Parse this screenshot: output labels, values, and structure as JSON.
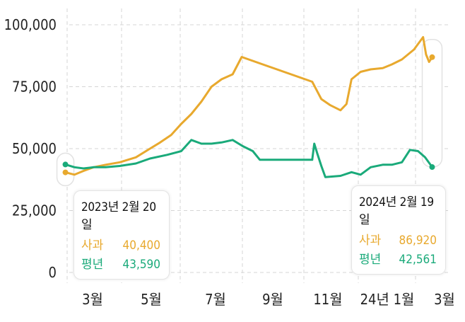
{
  "chart_data": {
    "type": "line",
    "x_tick_labels": [
      "3월",
      "5월",
      "7월",
      "9월",
      "11월",
      "24년 1월",
      "3월"
    ],
    "y_tick_labels": [
      "100,000",
      "75,000",
      "50,000",
      "25,000",
      "0"
    ],
    "y_ticks": [
      100000,
      75000,
      50000,
      25000,
      0
    ],
    "ylim": [
      0,
      100000
    ],
    "xlim": [
      "2023-02-14",
      "2024-03-10"
    ],
    "grid": true,
    "series": [
      {
        "name": "사과",
        "color": "#e8a92e",
        "points": [
          [
            "2023-02-20",
            40400
          ],
          [
            "2023-03-01",
            39500
          ],
          [
            "2023-03-10",
            41000
          ],
          [
            "2023-03-20",
            42500
          ],
          [
            "2023-04-01",
            43500
          ],
          [
            "2023-04-15",
            44500
          ],
          [
            "2023-05-01",
            46500
          ],
          [
            "2023-05-15",
            50000
          ],
          [
            "2023-05-25",
            52500
          ],
          [
            "2023-06-05",
            55500
          ],
          [
            "2023-06-15",
            60000
          ],
          [
            "2023-06-25",
            64000
          ],
          [
            "2023-07-05",
            69000
          ],
          [
            "2023-07-15",
            75000
          ],
          [
            "2023-07-25",
            78000
          ],
          [
            "2023-08-05",
            80000
          ],
          [
            "2023-08-14",
            87000
          ],
          [
            "2023-10-23",
            77000
          ],
          [
            "2023-11-01",
            70000
          ],
          [
            "2023-11-10",
            67500
          ],
          [
            "2023-11-20",
            65500
          ],
          [
            "2023-11-26",
            68000
          ],
          [
            "2023-12-01",
            78000
          ],
          [
            "2023-12-10",
            81000
          ],
          [
            "2023-12-20",
            82000
          ],
          [
            "2024-01-01",
            82500
          ],
          [
            "2024-01-10",
            84000
          ],
          [
            "2024-01-20",
            86000
          ],
          [
            "2024-02-01",
            90000
          ],
          [
            "2024-02-10",
            95000
          ],
          [
            "2024-02-13",
            88000
          ],
          [
            "2024-02-16",
            85000
          ],
          [
            "2024-02-19",
            86920
          ]
        ]
      },
      {
        "name": "평년",
        "color": "#1aaa7a",
        "points": [
          [
            "2023-02-20",
            43590
          ],
          [
            "2023-03-01",
            42500
          ],
          [
            "2023-03-10",
            42000
          ],
          [
            "2023-03-20",
            42500
          ],
          [
            "2023-04-01",
            42500
          ],
          [
            "2023-04-15",
            43000
          ],
          [
            "2023-05-01",
            44000
          ],
          [
            "2023-05-15",
            46000
          ],
          [
            "2023-06-01",
            47500
          ],
          [
            "2023-06-15",
            49000
          ],
          [
            "2023-06-25",
            53500
          ],
          [
            "2023-07-05",
            52000
          ],
          [
            "2023-07-15",
            52000
          ],
          [
            "2023-07-25",
            52500
          ],
          [
            "2023-08-05",
            53500
          ],
          [
            "2023-08-15",
            51000
          ],
          [
            "2023-08-25",
            49000
          ],
          [
            "2023-09-01",
            45500
          ],
          [
            "2023-10-23",
            45500
          ],
          [
            "2023-10-25",
            52000
          ],
          [
            "2023-10-28",
            48000
          ],
          [
            "2023-11-01",
            43000
          ],
          [
            "2023-11-05",
            38500
          ],
          [
            "2023-11-20",
            39000
          ],
          [
            "2023-12-01",
            40500
          ],
          [
            "2023-12-10",
            39500
          ],
          [
            "2023-12-20",
            42500
          ],
          [
            "2024-01-01",
            43500
          ],
          [
            "2024-01-10",
            43500
          ],
          [
            "2024-01-20",
            44500
          ],
          [
            "2024-01-28",
            49500
          ],
          [
            "2024-02-05",
            49000
          ],
          [
            "2024-02-12",
            46500
          ],
          [
            "2024-02-19",
            42561
          ]
        ]
      }
    ],
    "annotations": [
      {
        "date": "2023년 2월 20일",
        "rows": [
          {
            "name": "사과",
            "value": "40,400"
          },
          {
            "name": "평년",
            "value": "43,590"
          }
        ]
      },
      {
        "date": "2024년 2월 19일",
        "rows": [
          {
            "name": "사과",
            "value": "86,920"
          },
          {
            "name": "평년",
            "value": "42,561"
          }
        ]
      }
    ]
  }
}
